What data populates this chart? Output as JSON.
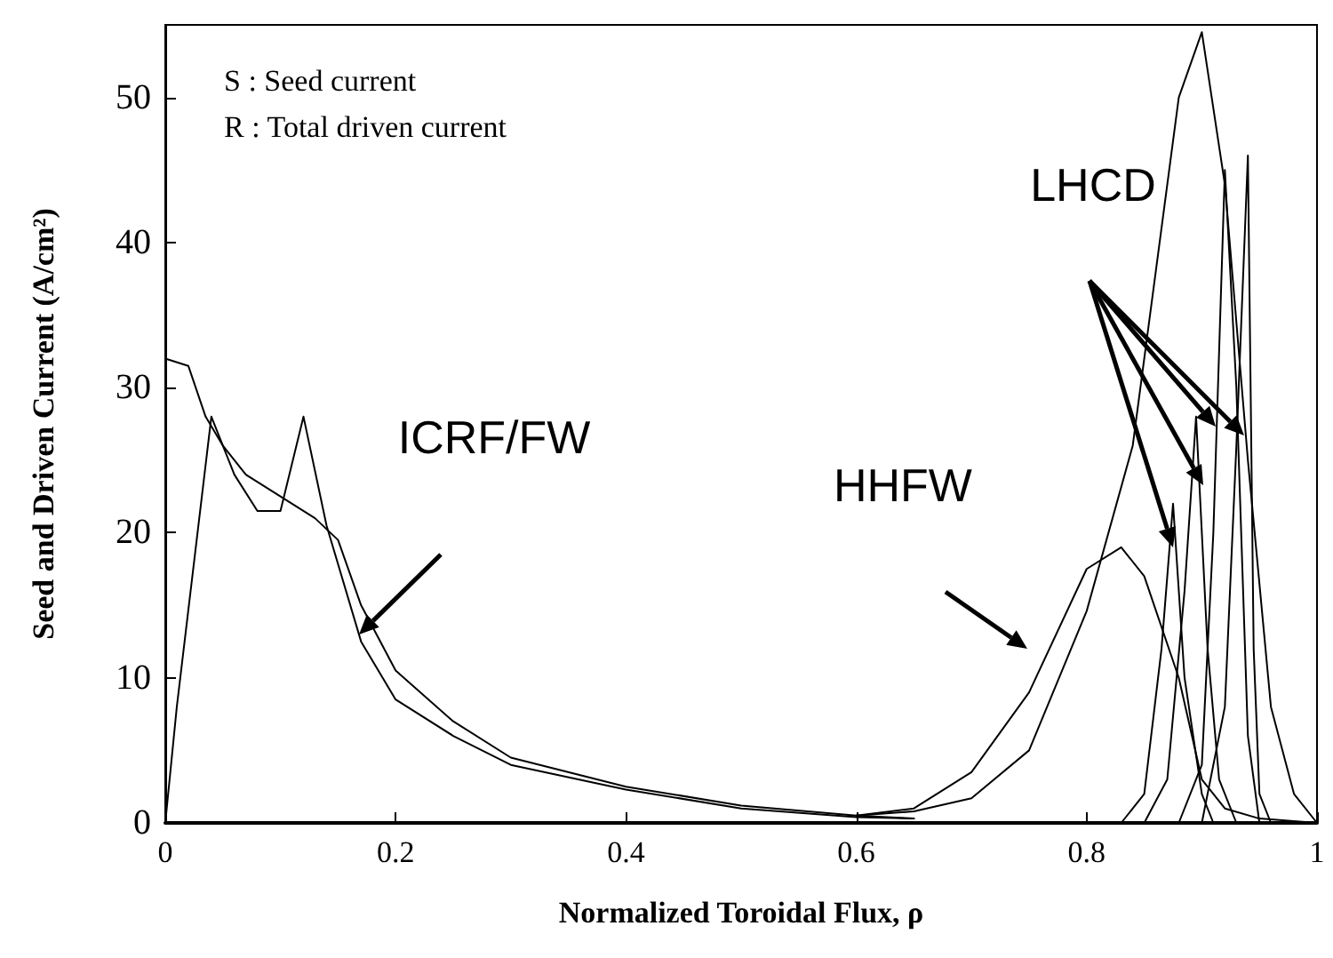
{
  "chart_data": {
    "type": "line",
    "xlabel": "Normalized Toroidal Flux, ρ",
    "ylabel": "Seed and Driven Current (A/cm²)",
    "xlim": [
      0,
      1
    ],
    "xticks": [
      0,
      0.2,
      0.4,
      0.6,
      0.8,
      1
    ],
    "ylim": [
      0,
      55
    ],
    "yticks": [
      0,
      10,
      20,
      30,
      40,
      50
    ],
    "grid": false,
    "marker": "none",
    "line_style": "solid",
    "annotations": [
      "S : Seed current",
      "R : Total driven current",
      "ICRF/FW",
      "HHFW",
      "LHCD"
    ],
    "series": [
      {
        "color": "#000000",
        "x": [
          0,
          0.02,
          0.035,
          0.05,
          0.07,
          0.1,
          0.13,
          0.15,
          0.17,
          0.2,
          0.25,
          0.3,
          0.4,
          0.5,
          0.6,
          0.65
        ],
        "values": [
          32,
          31.5,
          28,
          26,
          24,
          22.5,
          21,
          19.5,
          15,
          10.5,
          7,
          4.5,
          2.5,
          1.2,
          0.5,
          0.3
        ]
      },
      {
        "color": "#000000",
        "x": [
          0,
          0.01,
          0.04,
          0.06,
          0.08,
          0.1,
          0.12,
          0.14,
          0.17,
          0.2,
          0.25,
          0.3,
          0.4,
          0.5,
          0.6,
          0.65
        ],
        "values": [
          0,
          8,
          28,
          24,
          21.5,
          21.5,
          28,
          20.5,
          12.5,
          8.5,
          6,
          4,
          2.3,
          1,
          0.4,
          0.3
        ]
      },
      {
        "color": "#000000",
        "x": [
          0.6,
          0.65,
          0.7,
          0.75,
          0.8,
          0.83,
          0.85,
          0.88,
          0.9,
          0.92,
          0.95,
          1
        ],
        "values": [
          0.5,
          1,
          3.5,
          9,
          17.5,
          19,
          17,
          10,
          3,
          1,
          0.3,
          0
        ]
      },
      {
        "color": "#000000",
        "x": [
          0.6,
          0.65,
          0.7,
          0.75,
          0.8,
          0.84,
          0.86,
          0.88,
          0.9,
          0.92,
          0.94,
          0.96,
          0.98,
          1
        ],
        "values": [
          0.5,
          0.8,
          1.7,
          5,
          14.6,
          26,
          38,
          50,
          54.5,
          44,
          25,
          8,
          2,
          0
        ]
      },
      {
        "color": "#000000",
        "x": [
          0.83,
          0.85,
          0.865,
          0.875,
          0.885,
          0.9,
          0.91
        ],
        "values": [
          0,
          2,
          12,
          22,
          10,
          2,
          0
        ]
      },
      {
        "color": "#000000",
        "x": [
          0.85,
          0.87,
          0.885,
          0.895,
          0.905,
          0.915,
          0.93
        ],
        "values": [
          0,
          3,
          16,
          28,
          12,
          3,
          0
        ]
      },
      {
        "color": "#000000",
        "x": [
          0.88,
          0.9,
          0.91,
          0.92,
          0.93,
          0.94,
          0.95
        ],
        "values": [
          0,
          4,
          20,
          45,
          30,
          6,
          0
        ]
      },
      {
        "color": "#000000",
        "x": [
          0.9,
          0.92,
          0.93,
          0.94,
          0.945,
          0.95,
          0.96
        ],
        "values": [
          0,
          8,
          26,
          46,
          12,
          2,
          0
        ]
      }
    ]
  }
}
